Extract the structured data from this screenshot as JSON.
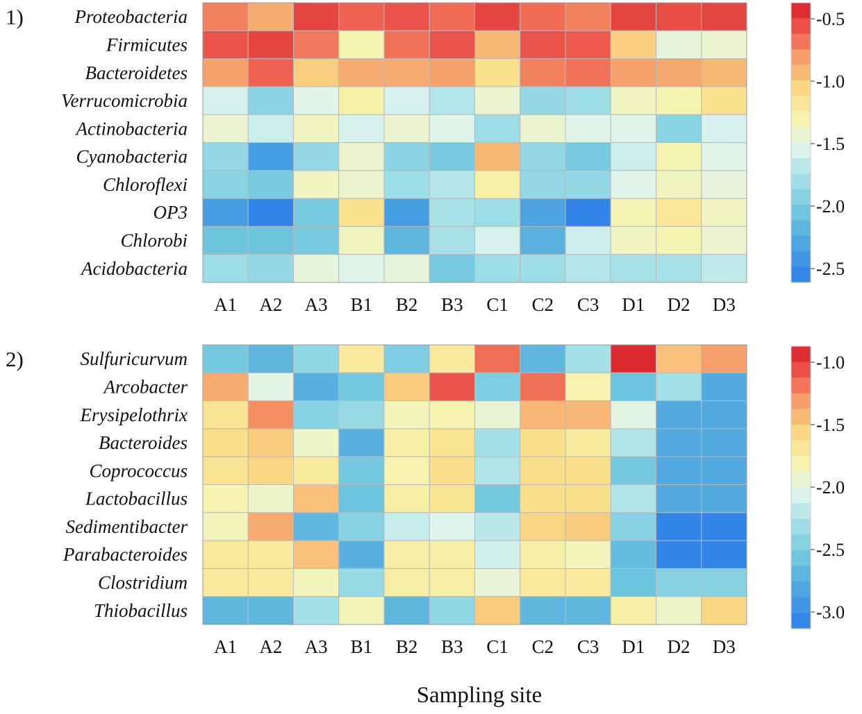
{
  "xlabel": "Sampling site",
  "chart_data": [
    {
      "type": "heatmap",
      "panel_label": "1)",
      "columns": [
        "A1",
        "A2",
        "A3",
        "B1",
        "B2",
        "B3",
        "C1",
        "C2",
        "C3",
        "D1",
        "D2",
        "D3"
      ],
      "rows": [
        "Proteobacteria",
        "Firmicutes",
        "Bacteroidetes",
        "Verrucomicrobia",
        "Actinobacteria",
        "Cyanobacteria",
        "Chloroflexi",
        "OP3",
        "Chlorobi",
        "Acidobacteria"
      ],
      "values": [
        [
          -0.75,
          -0.9,
          -0.55,
          -0.65,
          -0.6,
          -0.68,
          -0.55,
          -0.68,
          -0.75,
          -0.55,
          -0.58,
          -0.55
        ],
        [
          -0.6,
          -0.55,
          -0.72,
          -1.35,
          -0.7,
          -0.6,
          -0.95,
          -0.6,
          -0.62,
          -1.05,
          -1.5,
          -1.45
        ],
        [
          -0.85,
          -0.65,
          -1.05,
          -0.9,
          -0.9,
          -0.85,
          -1.15,
          -0.75,
          -0.7,
          -0.85,
          -0.88,
          -0.95
        ],
        [
          -1.6,
          -1.95,
          -1.55,
          -1.3,
          -1.6,
          -1.75,
          -1.45,
          -1.9,
          -1.85,
          -1.4,
          -1.35,
          -1.15
        ],
        [
          -1.45,
          -1.65,
          -1.4,
          -1.6,
          -1.45,
          -1.55,
          -1.85,
          -1.45,
          -1.55,
          -1.55,
          -1.95,
          -1.6
        ],
        [
          -1.9,
          -2.4,
          -1.9,
          -1.45,
          -1.95,
          -2.05,
          -0.95,
          -1.9,
          -2.05,
          -1.65,
          -1.35,
          -1.55
        ],
        [
          -1.95,
          -2.05,
          -1.4,
          -1.45,
          -1.85,
          -1.75,
          -1.3,
          -1.9,
          -1.9,
          -1.55,
          -1.4,
          -1.5
        ],
        [
          -2.4,
          -2.6,
          -2.05,
          -1.15,
          -2.4,
          -1.8,
          -1.85,
          -2.35,
          -2.6,
          -1.35,
          -1.2,
          -1.4
        ],
        [
          -2.1,
          -2.1,
          -2.05,
          -1.4,
          -2.2,
          -1.8,
          -1.6,
          -2.25,
          -1.65,
          -1.4,
          -1.35,
          -1.45
        ],
        [
          -1.85,
          -1.9,
          -1.5,
          -1.55,
          -1.5,
          -2.05,
          -1.85,
          -1.85,
          -1.75,
          -1.8,
          -1.8,
          -1.7
        ]
      ],
      "colorbar": {
        "ticks": [
          "-0.5",
          "-1.0",
          "-1.5",
          "-2.0",
          "-2.5"
        ],
        "min": -2.65,
        "max": -0.4
      }
    },
    {
      "type": "heatmap",
      "panel_label": "2)",
      "columns": [
        "A1",
        "A2",
        "A3",
        "B1",
        "B2",
        "B3",
        "C1",
        "C2",
        "C3",
        "D1",
        "D2",
        "D3"
      ],
      "rows": [
        "Sulfuricurvum",
        "Arcobacter",
        "Erysipelothrix",
        "Bacteroides",
        "Coprococcus",
        "Lactobacillus",
        "Sedimentibacter",
        "Parabacteroides",
        "Clostridium",
        "Thiobacillus"
      ],
      "values": [
        [
          -2.55,
          -2.7,
          -2.4,
          -1.7,
          -2.5,
          -1.7,
          -1.15,
          -2.7,
          -2.3,
          -0.9,
          -1.45,
          -1.3
        ],
        [
          -1.35,
          -2.0,
          -2.75,
          -2.55,
          -1.5,
          -1.05,
          -2.5,
          -1.15,
          -1.8,
          -2.6,
          -2.3,
          -2.8
        ],
        [
          -1.65,
          -1.25,
          -2.45,
          -2.35,
          -1.85,
          -1.8,
          -1.95,
          -1.4,
          -1.4,
          -2.0,
          -2.8,
          -2.8
        ],
        [
          -1.6,
          -1.5,
          -1.9,
          -2.75,
          -1.75,
          -1.65,
          -2.3,
          -1.6,
          -1.7,
          -2.25,
          -2.8,
          -2.8
        ],
        [
          -1.65,
          -1.55,
          -1.7,
          -2.55,
          -1.8,
          -1.6,
          -2.25,
          -1.6,
          -1.6,
          -2.55,
          -2.8,
          -2.8
        ],
        [
          -1.8,
          -1.9,
          -1.45,
          -2.6,
          -1.75,
          -1.65,
          -2.55,
          -1.6,
          -1.6,
          -2.25,
          -2.8,
          -2.8
        ],
        [
          -1.85,
          -1.35,
          -2.7,
          -2.45,
          -2.15,
          -2.05,
          -2.2,
          -1.55,
          -1.5,
          -2.45,
          -3.1,
          -3.1
        ],
        [
          -1.7,
          -1.7,
          -1.45,
          -2.75,
          -1.75,
          -1.75,
          -2.1,
          -1.75,
          -1.85,
          -2.65,
          -3.1,
          -3.1
        ],
        [
          -1.7,
          -1.7,
          -1.85,
          -2.35,
          -1.75,
          -1.75,
          -1.95,
          -1.7,
          -1.7,
          -2.6,
          -2.45,
          -2.45
        ],
        [
          -2.7,
          -2.7,
          -2.3,
          -1.85,
          -2.7,
          -2.4,
          -1.5,
          -2.7,
          -2.7,
          -1.75,
          -1.9,
          -1.55
        ]
      ],
      "colorbar": {
        "ticks": [
          "-1.0",
          "-1.5",
          "-2.0",
          "-2.5",
          "-3.0"
        ],
        "min": -3.15,
        "max": -0.85
      }
    }
  ]
}
